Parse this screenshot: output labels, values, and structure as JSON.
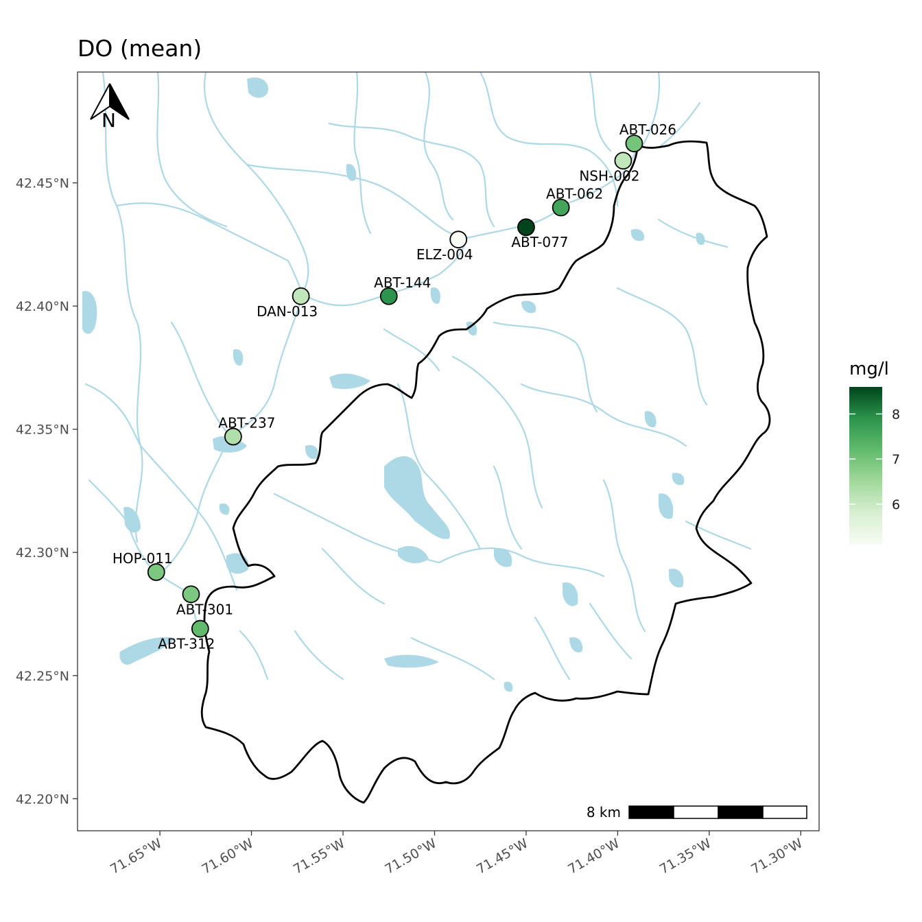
{
  "map": {
    "title": "DO (mean)",
    "extent": {
      "lon": [
        -71.695,
        -71.29
      ],
      "lat": [
        42.187,
        42.495
      ]
    },
    "x_ticks": [
      {
        "lon": -71.65,
        "label": "71.65°W"
      },
      {
        "lon": -71.6,
        "label": "71.60°W"
      },
      {
        "lon": -71.55,
        "label": "71.55°W"
      },
      {
        "lon": -71.5,
        "label": "71.50°W"
      },
      {
        "lon": -71.45,
        "label": "71.45°W"
      },
      {
        "lon": -71.4,
        "label": "71.40°W"
      },
      {
        "lon": -71.35,
        "label": "71.35°W"
      },
      {
        "lon": -71.3,
        "label": "71.30°W"
      }
    ],
    "y_ticks": [
      {
        "lat": 42.45,
        "label": "42.45°N"
      },
      {
        "lat": 42.4,
        "label": "42.40°N"
      },
      {
        "lat": 42.35,
        "label": "42.35°N"
      },
      {
        "lat": 42.3,
        "label": "42.30°N"
      },
      {
        "lat": 42.25,
        "label": "42.25°N"
      },
      {
        "lat": 42.2,
        "label": "42.20°N"
      }
    ],
    "north_arrow": {
      "label": "N"
    },
    "scale_bar": {
      "label": "8 km",
      "segments": 4
    },
    "colors": {
      "water": "#add8e6",
      "boundary": "#000000",
      "low": "#f7fcf5",
      "high": "#00441b"
    }
  },
  "legend": {
    "title": "mg/l",
    "min": 5.1,
    "max": 8.6,
    "ticks": [
      {
        "value": 6,
        "label": "6"
      },
      {
        "value": 7,
        "label": "7"
      },
      {
        "value": 8,
        "label": "8"
      }
    ]
  },
  "sites": [
    {
      "id": "ABT-026",
      "lon": -71.391,
      "lat": 42.466,
      "value": 7.0
    },
    {
      "id": "NSH-002",
      "lon": -71.397,
      "lat": 42.459,
      "value": 6.1
    },
    {
      "id": "ABT-062",
      "lon": -71.431,
      "lat": 42.44,
      "value": 7.6
    },
    {
      "id": "ABT-077",
      "lon": -71.45,
      "lat": 42.432,
      "value": 8.6
    },
    {
      "id": "ELZ-004",
      "lon": -71.487,
      "lat": 42.427,
      "value": 5.1
    },
    {
      "id": "ABT-144",
      "lon": -71.525,
      "lat": 42.404,
      "value": 7.9
    },
    {
      "id": "DAN-013",
      "lon": -71.573,
      "lat": 42.404,
      "value": 6.1
    },
    {
      "id": "ABT-237",
      "lon": -71.61,
      "lat": 42.347,
      "value": 6.3
    },
    {
      "id": "HOP-011",
      "lon": -71.652,
      "lat": 42.292,
      "value": 6.9
    },
    {
      "id": "ABT-301",
      "lon": -71.633,
      "lat": 42.283,
      "value": 6.9
    },
    {
      "id": "ABT-312",
      "lon": -71.628,
      "lat": 42.269,
      "value": 7.2
    }
  ]
}
